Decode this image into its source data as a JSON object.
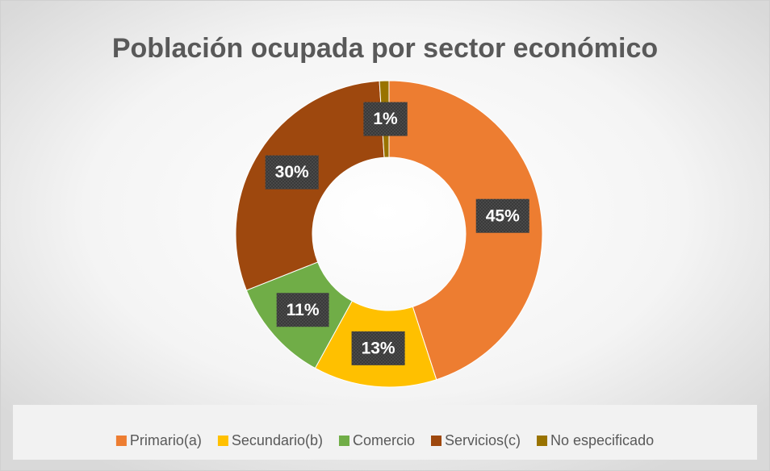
{
  "chart_data": {
    "type": "donut",
    "title": "Población ocupada por sector económico",
    "categories": [
      "Primario(a)",
      "Secundario(b)",
      "Comercio",
      "Servicios(c)",
      "No especificado"
    ],
    "values": [
      45,
      13,
      11,
      30,
      1
    ],
    "value_labels": [
      "45%",
      "13%",
      "11%",
      "30%",
      "1%"
    ],
    "colors": [
      "#ED7D31",
      "#FFC000",
      "#70AD47",
      "#9E480E",
      "#997300"
    ],
    "legend": "bottom"
  }
}
